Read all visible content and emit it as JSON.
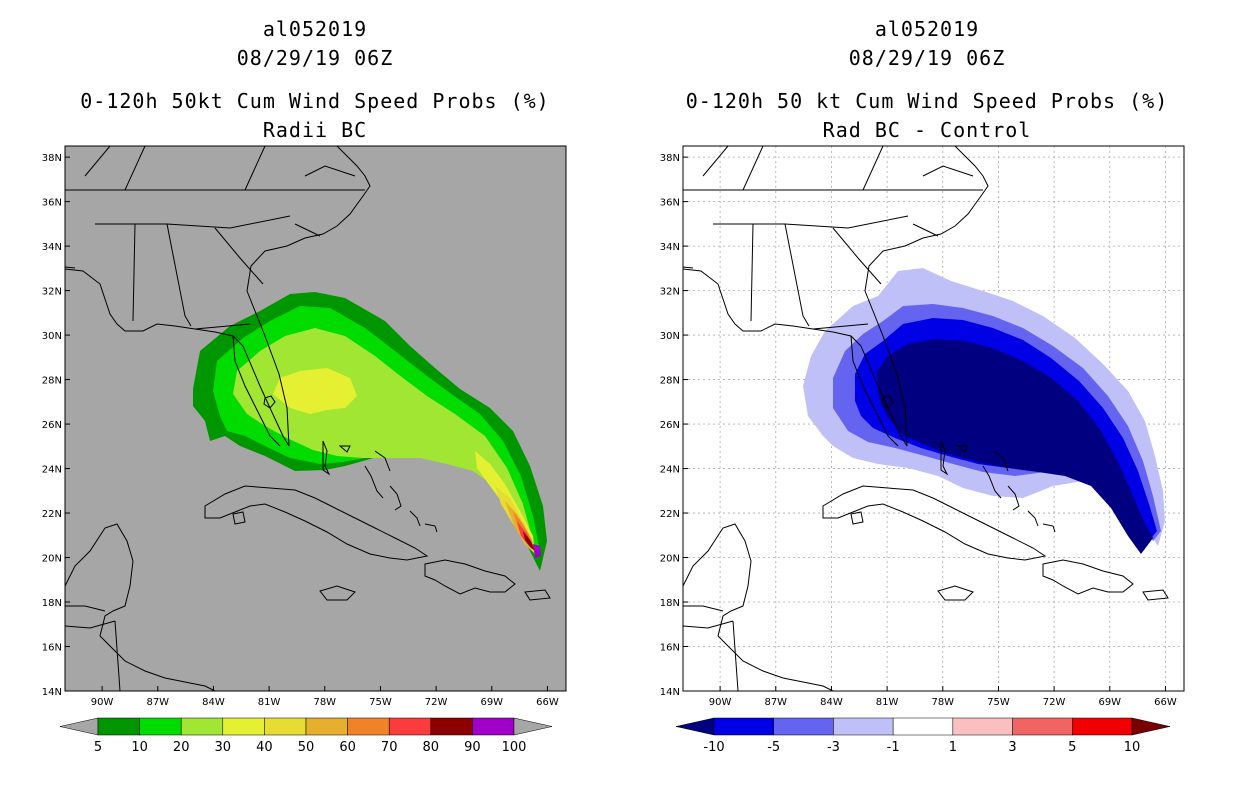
{
  "left_panel": {
    "title_line1": "al052019",
    "title_line2": "08/29/19 06Z",
    "title_line3": "0-120h 50kt Cum Wind Speed Probs (%)",
    "title_line4": "Radii BC",
    "legend": {
      "labels": [
        "5",
        "10",
        "20",
        "30",
        "40",
        "50",
        "60",
        "70",
        "80",
        "90",
        "100"
      ],
      "colors": [
        "#009600",
        "#00dc00",
        "#a0e632",
        "#e6f032",
        "#e6dc32",
        "#e6af2d",
        "#f08228",
        "#fa3c3c",
        "#8c0000",
        "#a000c8"
      ],
      "below_color": "#a6a6a6",
      "above_color": "#a6a6a6"
    },
    "background_color": "#a6a6a6"
  },
  "right_panel": {
    "title_line1": "al052019",
    "title_line2": "08/29/19 06Z",
    "title_line3": "0-120h 50 kt Cum Wind Speed Probs (%)",
    "title_line4": "Rad BC - Control",
    "legend": {
      "labels": [
        "-10",
        "-5",
        "-3",
        "-1",
        "1",
        "3",
        "5",
        "10"
      ],
      "colors": [
        "#0000e6",
        "#6464f0",
        "#c0c0f8",
        "#ffffff",
        "#fac0c0",
        "#f06464",
        "#f00000"
      ],
      "below_color": "#000080",
      "above_color": "#780000"
    },
    "background_color": "#ffffff"
  },
  "map": {
    "lat_labels": [
      "38N",
      "36N",
      "34N",
      "32N",
      "30N",
      "28N",
      "26N",
      "24N",
      "22N",
      "20N",
      "18N",
      "16N",
      "14N"
    ],
    "lat_values": [
      38,
      36,
      34,
      32,
      30,
      28,
      26,
      24,
      22,
      20,
      18,
      16,
      14
    ],
    "lon_labels": [
      "90W",
      "87W",
      "84W",
      "81W",
      "78W",
      "75W",
      "72W",
      "69W",
      "66W"
    ],
    "lon_values": [
      -90,
      -87,
      -84,
      -81,
      -78,
      -75,
      -72,
      -69,
      -66
    ],
    "lon_range": [
      -92,
      -65
    ],
    "lat_range": [
      14,
      38.5
    ]
  }
}
